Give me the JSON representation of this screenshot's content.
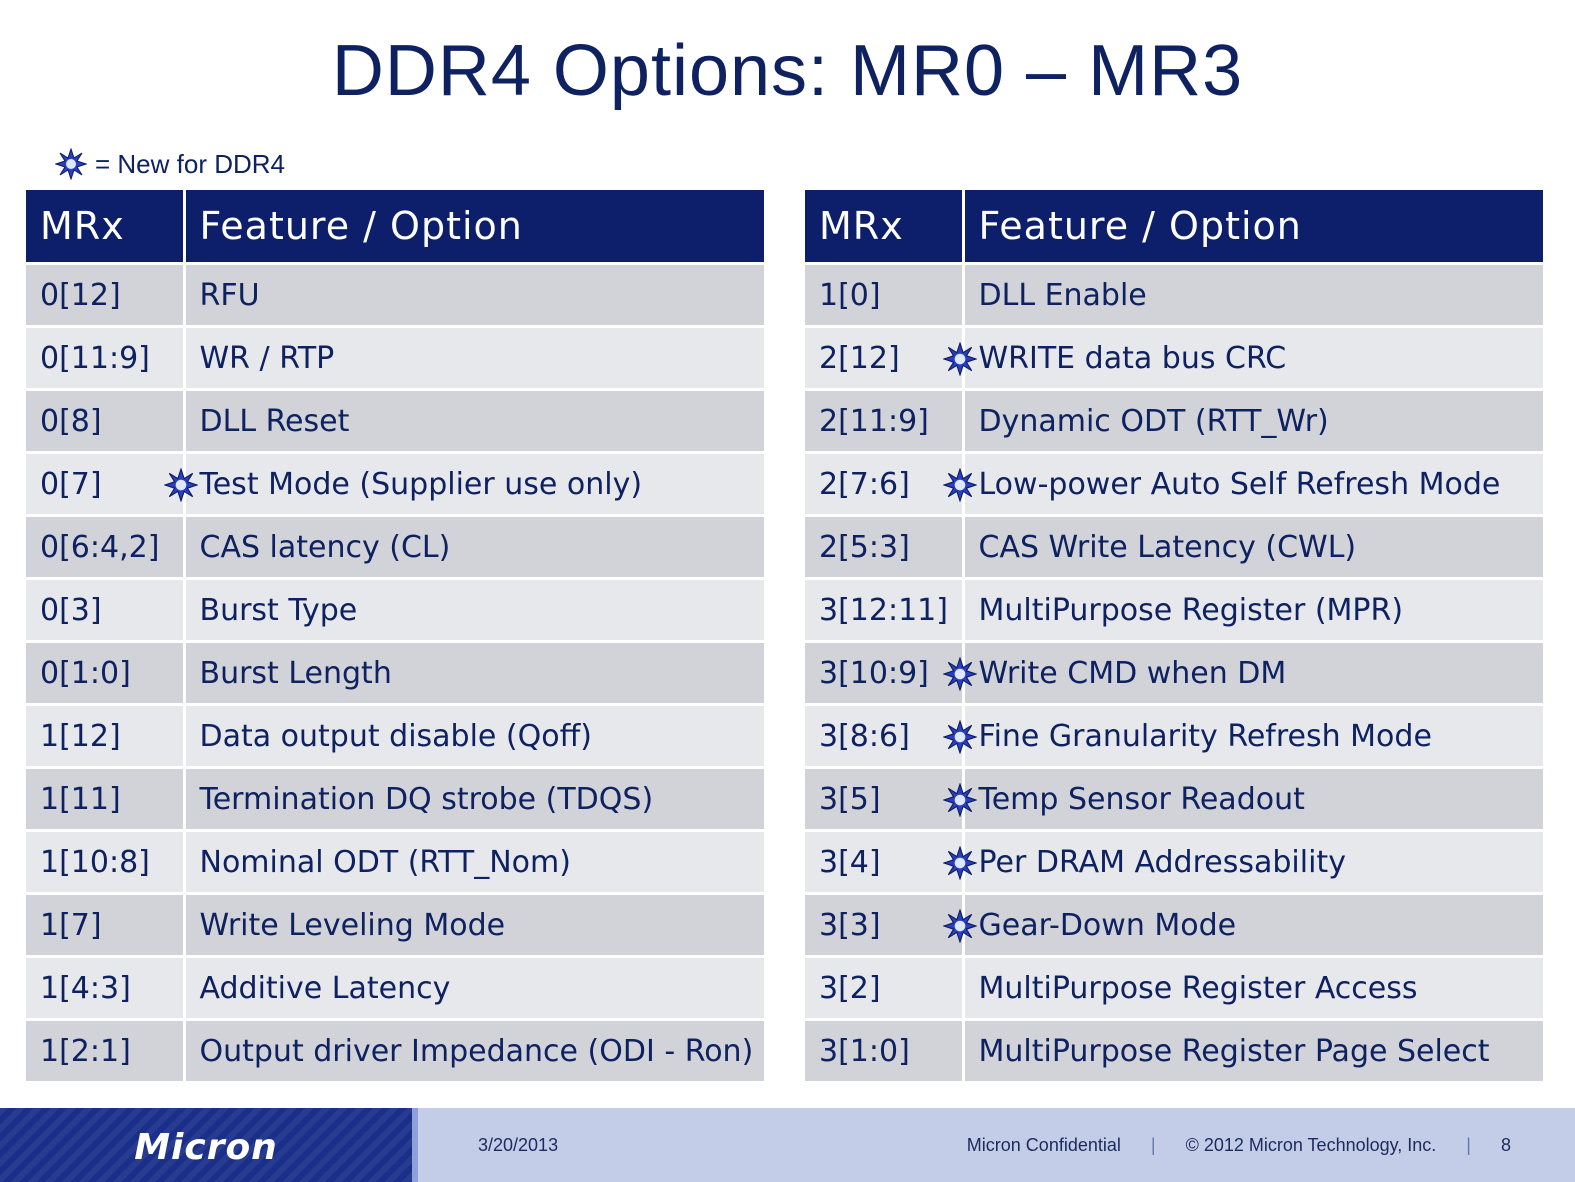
{
  "title": "DDR4 Options: MR0 – MR3",
  "legend": {
    "icon": "new-star-icon",
    "text": "= New for DDR4"
  },
  "headers": {
    "mrx": "MRx",
    "feature": "Feature /  Option"
  },
  "left_rows": [
    {
      "mrx": "0[12]",
      "feature": "RFU",
      "new": false
    },
    {
      "mrx": "0[11:9]",
      "feature": "WR / RTP",
      "new": false
    },
    {
      "mrx": "0[8]",
      "feature": "DLL Reset",
      "new": false
    },
    {
      "mrx": "0[7]",
      "feature": "Test Mode (Supplier use only)",
      "new": true
    },
    {
      "mrx": "0[6:4,2]",
      "feature": "CAS latency (CL)",
      "new": false
    },
    {
      "mrx": "0[3]",
      "feature": "Burst Type",
      "new": false
    },
    {
      "mrx": "0[1:0]",
      "feature": "Burst Length",
      "new": false
    },
    {
      "mrx": "1[12]",
      "feature": "Data output disable (Qoff)",
      "new": false
    },
    {
      "mrx": "1[11]",
      "feature": "Termination DQ strobe (TDQS)",
      "new": false
    },
    {
      "mrx": "1[10:8]",
      "feature": "Nominal ODT (RTT_Nom)",
      "new": false
    },
    {
      "mrx": "1[7]",
      "feature": "Write Leveling Mode",
      "new": false
    },
    {
      "mrx": "1[4:3]",
      "feature": "Additive Latency",
      "new": false
    },
    {
      "mrx": "1[2:1]",
      "feature": "Output driver Impedance (ODI - Ron)",
      "new": false
    }
  ],
  "right_rows": [
    {
      "mrx": "1[0]",
      "feature": "DLL Enable",
      "new": false
    },
    {
      "mrx": "2[12]",
      "feature": "WRITE data bus CRC",
      "new": true
    },
    {
      "mrx": "2[11:9]",
      "feature": "Dynamic ODT (RTT_Wr)",
      "new": false
    },
    {
      "mrx": "2[7:6]",
      "feature": "Low-power Auto Self Refresh Mode",
      "new": true
    },
    {
      "mrx": "2[5:3]",
      "feature": "CAS Write Latency (CWL)",
      "new": false
    },
    {
      "mrx": "3[12:11]",
      "feature": "MultiPurpose Register (MPR)",
      "new": false
    },
    {
      "mrx": "3[10:9]",
      "feature": "Write CMD when DM",
      "new": true
    },
    {
      "mrx": "3[8:6]",
      "feature": "Fine Granularity Refresh Mode",
      "new": true
    },
    {
      "mrx": "3[5]",
      "feature": "Temp Sensor Readout",
      "new": true
    },
    {
      "mrx": "3[4]",
      "feature": "Per DRAM Addressability",
      "new": true
    },
    {
      "mrx": "3[3]",
      "feature": "Gear-Down Mode",
      "new": true
    },
    {
      "mrx": "3[2]",
      "feature": "MultiPurpose Register Access",
      "new": false
    },
    {
      "mrx": "3[1:0]",
      "feature": "MultiPurpose Register  Page Select",
      "new": false
    }
  ],
  "footer": {
    "logo": "Micron",
    "date": "3/20/2013",
    "confidential": "Micron Confidential",
    "copyright": "© 2012 Micron Technology, Inc.",
    "page": "8"
  },
  "colors": {
    "header_bg": "#0d1f6b",
    "row_dark": "#d1d3d8",
    "row_light": "#e7e8ec",
    "title": "#0e2160"
  }
}
